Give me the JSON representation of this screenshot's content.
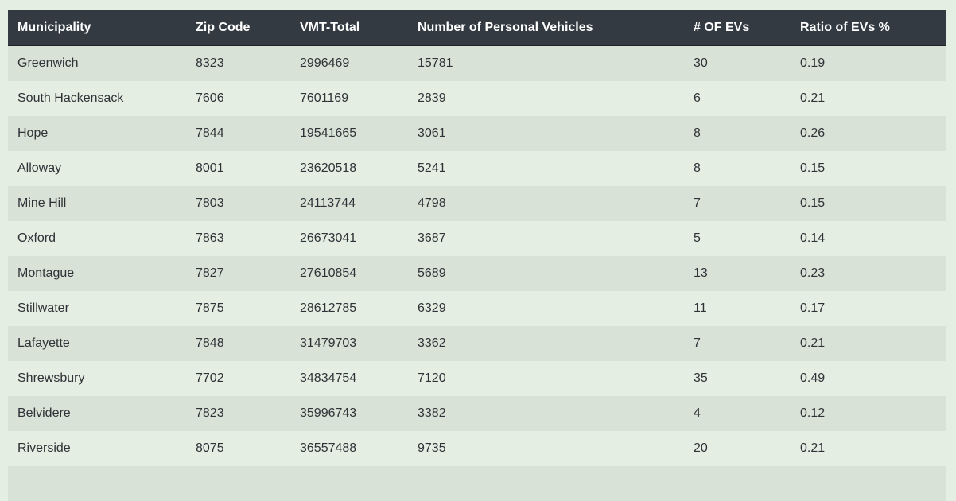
{
  "table": {
    "headers": [
      "Municipality",
      "Zip Code",
      "VMT-Total",
      "Number of Personal Vehicles",
      "# OF EVs",
      "Ratio of EVs %"
    ],
    "rows": [
      [
        "Greenwich",
        "8323",
        "2996469",
        "15781",
        "30",
        "0.19"
      ],
      [
        "South Hackensack",
        "7606",
        "7601169",
        "2839",
        "6",
        "0.21"
      ],
      [
        "Hope",
        "7844",
        "19541665",
        "3061",
        "8",
        "0.26"
      ],
      [
        "Alloway",
        "8001",
        "23620518",
        "5241",
        "8",
        "0.15"
      ],
      [
        "Mine Hill",
        "7803",
        "24113744",
        "4798",
        "7",
        "0.15"
      ],
      [
        "Oxford",
        "7863",
        "26673041",
        "3687",
        "5",
        "0.14"
      ],
      [
        "Montague",
        "7827",
        "27610854",
        "5689",
        "13",
        "0.23"
      ],
      [
        "Stillwater",
        "7875",
        "28612785",
        "6329",
        "11",
        "0.17"
      ],
      [
        "Lafayette",
        "7848",
        "31479703",
        "3362",
        "7",
        "0.21"
      ],
      [
        "Shrewsbury",
        "7702",
        "34834754",
        "7120",
        "35",
        "0.49"
      ],
      [
        "Belvidere",
        "7823",
        "35996743",
        "3382",
        "4",
        "0.12"
      ],
      [
        "Riverside",
        "8075",
        "36557488",
        "9735",
        "20",
        "0.21"
      ],
      [
        "",
        "",
        "",
        "",
        "",
        ""
      ]
    ]
  },
  "colors": {
    "header_bg": "#343a42",
    "row_odd": "#d8e2d6",
    "row_even": "#e4eee2",
    "page_bg": "#e4eee2"
  }
}
